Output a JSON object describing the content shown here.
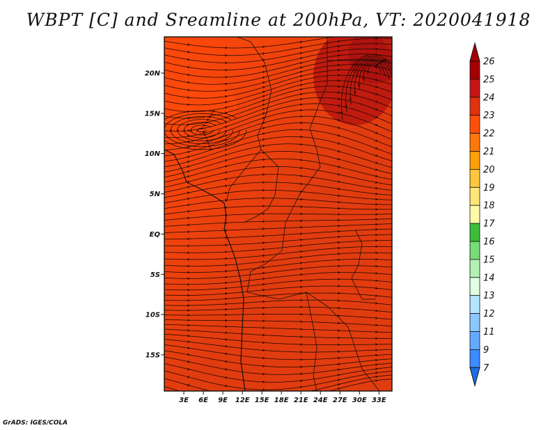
{
  "title": "WBPT [C] and Sreamline at 200hPa, VT: 2020041918",
  "credit": "GrADS: IGES/COLA",
  "map": {
    "lat_range": [
      -19.5,
      24.5
    ],
    "lon_range": [
      0.0,
      35.0
    ],
    "y_ticks": [
      {
        "lat": 20,
        "label": "20N"
      },
      {
        "lat": 15,
        "label": "15N"
      },
      {
        "lat": 10,
        "label": "10N"
      },
      {
        "lat": 5,
        "label": "5N"
      },
      {
        "lat": 0,
        "label": "EQ"
      },
      {
        "lat": -5,
        "label": "5S"
      },
      {
        "lat": -10,
        "label": "10S"
      },
      {
        "lat": -15,
        "label": "15S"
      }
    ],
    "x_ticks": [
      {
        "lon": 3,
        "label": "3E"
      },
      {
        "lon": 6,
        "label": "6E"
      },
      {
        "lon": 9,
        "label": "9E"
      },
      {
        "lon": 12,
        "label": "12E"
      },
      {
        "lon": 15,
        "label": "15E"
      },
      {
        "lon": 18,
        "label": "18E"
      },
      {
        "lon": 21,
        "label": "21E"
      },
      {
        "lon": 24,
        "label": "24E"
      },
      {
        "lon": 27,
        "label": "27E"
      },
      {
        "lon": 30,
        "label": "30E"
      },
      {
        "lon": 33,
        "label": "33E"
      }
    ],
    "field_colors": {
      "base": "#e13c0f",
      "lighter": "#ff4a0a",
      "darker": "#b8150f",
      "streamline": "#1a0500",
      "coast": "#111111"
    }
  },
  "colorbar": {
    "levels": [
      {
        "label": "26",
        "color": "#a50000"
      },
      {
        "label": "25",
        "color": "#c81414"
      },
      {
        "label": "24",
        "color": "#e1320f"
      },
      {
        "label": "23",
        "color": "#ff500a"
      },
      {
        "label": "22",
        "color": "#ff780a"
      },
      {
        "label": "21",
        "color": "#ffa00a"
      },
      {
        "label": "20",
        "color": "#ffc83c"
      },
      {
        "label": "19",
        "color": "#ffe678"
      },
      {
        "label": "18",
        "color": "#fffaaa"
      },
      {
        "label": "17",
        "color": "#3cbe3c"
      },
      {
        "label": "16",
        "color": "#78dc78"
      },
      {
        "label": "15",
        "color": "#b4f0b4"
      },
      {
        "label": "14",
        "color": "#e1ffe1"
      },
      {
        "label": "13",
        "color": "#b4e6ff"
      },
      {
        "label": "12",
        "color": "#8cc8ff"
      },
      {
        "label": "11",
        "color": "#64aaff"
      },
      {
        "label": "9",
        "color": "#3c8cff"
      },
      {
        "label": "7",
        "color": "#1e6ee6"
      }
    ],
    "bottom_color": "#1e6ee6"
  }
}
